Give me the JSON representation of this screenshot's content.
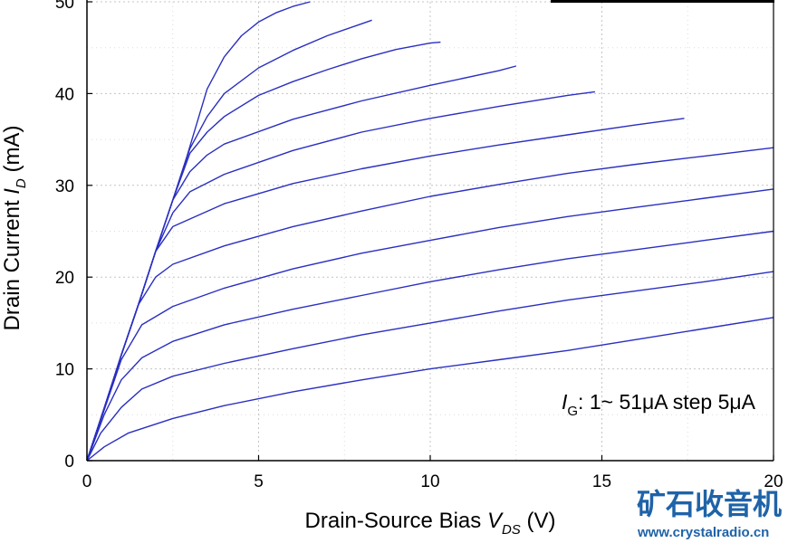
{
  "chart_data": {
    "type": "line",
    "xlabel": {
      "main": "Drain-Source Bias ",
      "var": "V",
      "sub": "DS",
      "unit": " (V)"
    },
    "ylabel": {
      "main": "Drain Current ",
      "var": "I",
      "sub": "D",
      "unit": " (mA)"
    },
    "xlim": [
      0,
      20
    ],
    "ylim": [
      0,
      50
    ],
    "xticks": [
      0,
      5,
      10,
      15,
      20
    ],
    "yticks": [
      0,
      10,
      20,
      30,
      40,
      50
    ],
    "grid": true,
    "line_color": "#2a2fc0",
    "annotation": {
      "var": "I",
      "sub": "G",
      "text": ": 1~ 51μA step 5μA"
    },
    "series": [
      {
        "x": [
          0,
          0.5,
          1.2,
          2.5,
          4,
          6,
          8,
          10,
          12,
          14,
          16,
          18,
          20
        ],
        "y": [
          0,
          1.5,
          3,
          4.6,
          6,
          7.5,
          8.8,
          10,
          11,
          12,
          13.2,
          14.4,
          15.6
        ]
      },
      {
        "x": [
          0,
          0.4,
          1,
          1.6,
          2.5,
          4,
          6,
          8,
          10,
          12,
          14,
          16,
          18,
          20
        ],
        "y": [
          0,
          3,
          5.8,
          7.8,
          9.2,
          10.6,
          12.2,
          13.7,
          15,
          16.3,
          17.5,
          18.5,
          19.5,
          20.6
        ]
      },
      {
        "x": [
          0,
          0.5,
          1,
          1.6,
          2.5,
          4,
          6,
          8,
          10,
          12,
          14,
          16,
          18,
          20
        ],
        "y": [
          0,
          5,
          8.8,
          11.2,
          13,
          14.8,
          16.5,
          18,
          19.5,
          20.8,
          22,
          23,
          24,
          25
        ]
      },
      {
        "x": [
          0,
          0.5,
          1,
          1.6,
          2.5,
          4,
          6,
          8,
          10,
          12,
          14,
          16,
          18,
          20
        ],
        "y": [
          0,
          5.5,
          11,
          14.8,
          16.8,
          18.8,
          20.9,
          22.6,
          24,
          25.4,
          26.6,
          27.6,
          28.6,
          29.6
        ]
      },
      {
        "x": [
          0,
          0.5,
          1,
          1.5,
          2,
          2.5,
          4,
          6,
          8,
          10,
          12,
          14,
          16,
          18,
          20
        ],
        "y": [
          0,
          5.7,
          11.5,
          17,
          20,
          21.4,
          23.4,
          25.5,
          27.2,
          28.8,
          30.1,
          31.3,
          32.3,
          33.2,
          34.1
        ]
      },
      {
        "x": [
          0,
          0.5,
          1,
          1.5,
          2,
          2.5,
          4,
          6,
          8,
          10,
          12,
          14,
          16,
          17.4
        ],
        "y": [
          0,
          5.7,
          11.5,
          17,
          22.8,
          25.5,
          28,
          30.2,
          31.8,
          33.2,
          34.4,
          35.5,
          36.6,
          37.3
        ]
      },
      {
        "x": [
          0,
          0.5,
          1,
          1.5,
          2,
          2.5,
          3,
          4,
          6,
          8,
          10,
          12,
          14,
          14.8
        ],
        "y": [
          0,
          5.7,
          11.5,
          17,
          22.8,
          27,
          29.3,
          31.2,
          33.8,
          35.8,
          37.3,
          38.6,
          39.8,
          40.2
        ]
      },
      {
        "x": [
          0,
          0.5,
          1,
          1.5,
          2,
          2.5,
          3,
          3.5,
          4,
          6,
          8,
          10,
          12,
          12.5
        ],
        "y": [
          0,
          5.7,
          11.5,
          17,
          22.8,
          28.4,
          31.5,
          33.3,
          34.5,
          37.2,
          39.2,
          40.9,
          42.5,
          43
        ]
      },
      {
        "x": [
          0,
          0.5,
          1,
          1.5,
          2,
          2.5,
          3,
          3.5,
          4,
          5,
          6,
          7,
          8,
          9,
          10,
          10.3
        ],
        "y": [
          0,
          5.7,
          11.5,
          17,
          22.8,
          28.4,
          33.5,
          35.8,
          37.5,
          39.8,
          41.3,
          42.6,
          43.8,
          44.8,
          45.5,
          45.6
        ]
      },
      {
        "x": [
          0,
          0.5,
          1,
          1.5,
          2,
          2.5,
          3,
          3.5,
          4,
          5,
          6,
          7,
          8,
          8.3
        ],
        "y": [
          0,
          5.7,
          11.5,
          17,
          22.8,
          28.4,
          34,
          37.5,
          40,
          42.8,
          44.7,
          46.3,
          47.6,
          48
        ]
      },
      {
        "x": [
          0,
          0.5,
          1,
          1.5,
          2,
          2.5,
          2.9,
          3.5,
          4,
          4.5,
          5,
          5.5,
          6,
          6.5
        ],
        "y": [
          0,
          5.7,
          11.5,
          17,
          22.8,
          28.4,
          33,
          40.5,
          44,
          46.3,
          47.8,
          48.8,
          49.5,
          50
        ]
      }
    ]
  },
  "watermark": {
    "cn": "矿石收音机",
    "url": "www.crystalradio.cn"
  }
}
